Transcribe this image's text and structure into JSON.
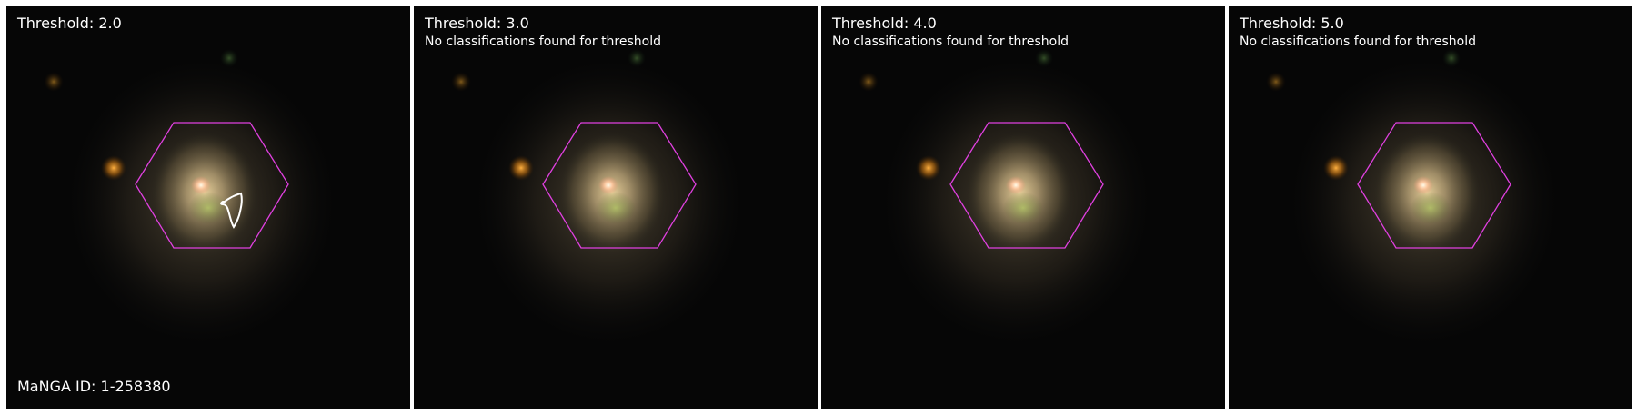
{
  "colors": {
    "hexagon": "#e040e0",
    "contour": "#ffffff",
    "background": "#050505",
    "text": "#ffffff"
  },
  "panels": [
    {
      "threshold_label": "Threshold: 2.0",
      "note": "",
      "manga_id_label": "MaNGA ID: 1-258380",
      "has_contour": true
    },
    {
      "threshold_label": "Threshold: 3.0",
      "note": "No classifications found for threshold",
      "manga_id_label": "",
      "has_contour": false
    },
    {
      "threshold_label": "Threshold: 4.0",
      "note": "No classifications found for threshold",
      "manga_id_label": "",
      "has_contour": false
    },
    {
      "threshold_label": "Threshold: 5.0",
      "note": "No classifications found for threshold",
      "manga_id_label": "",
      "has_contour": false
    }
  ]
}
